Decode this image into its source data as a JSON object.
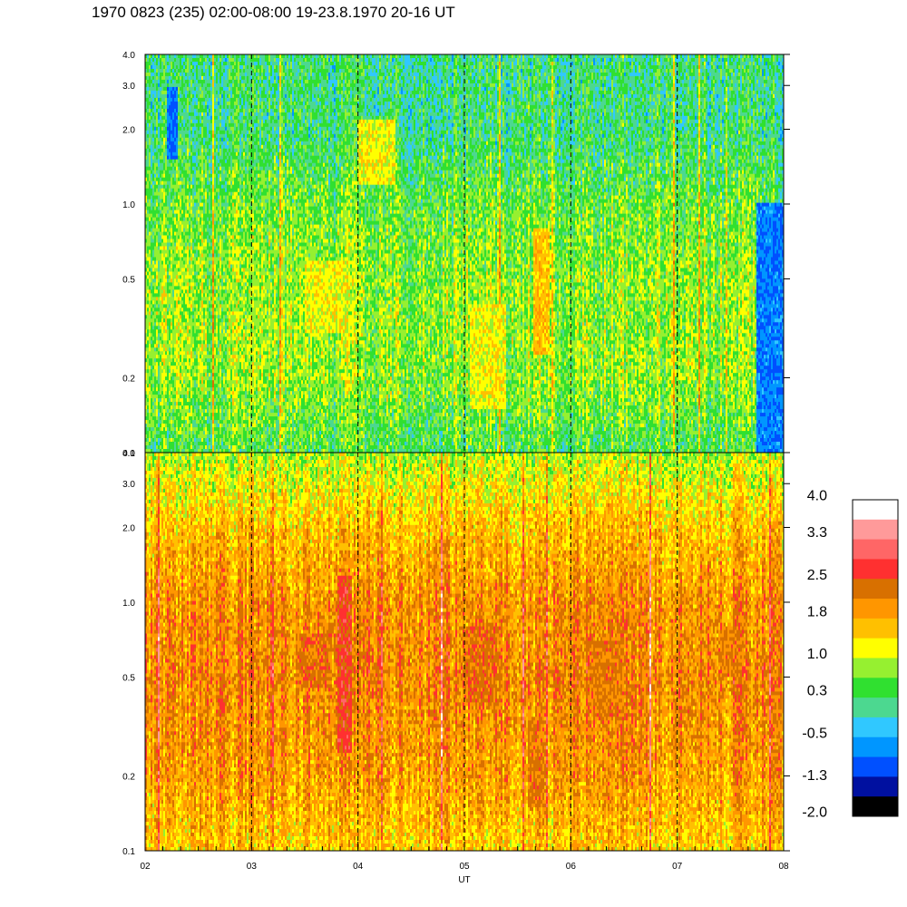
{
  "title": "1970 0823 (235) 02:00-08:00 19-23.8.1970  20-16 UT",
  "colors": {
    "scale": [
      "#000000",
      "#0010a0",
      "#0050ff",
      "#0096ff",
      "#30c8ff",
      "#4cd890",
      "#30e030",
      "#96f030",
      "#ffff00",
      "#ffc000",
      "#ff9600",
      "#d87000",
      "#ff3030",
      "#ff6666",
      "#ff9a9a",
      "#ffffff"
    ],
    "dashed_line": "#000000"
  },
  "chart_data": [
    {
      "type": "heatmap",
      "panel": "upper",
      "xlabel": "",
      "ylabel": "",
      "y_scale": "log",
      "ylim": [
        0.1,
        4.0
      ],
      "y_ticks": [
        0.1,
        0.2,
        0.5,
        1.0,
        2.0,
        3.0,
        4.0
      ],
      "y_tick_labels": [
        "0.1",
        "0.2",
        "0.5",
        "1.0",
        "2.0",
        "3.0",
        "4.0"
      ],
      "xlim": [
        2,
        8
      ],
      "x_ticks": [
        2,
        3,
        4,
        5,
        6,
        7,
        8
      ],
      "dashed_x": [
        3,
        4,
        5,
        6,
        7
      ],
      "grid": false,
      "value_range": [
        -2.0,
        4.0
      ],
      "profile_y": [
        0.1,
        0.2,
        0.5,
        1.0,
        2.0,
        4.0
      ],
      "profile_values": [
        0.4,
        0.8,
        0.8,
        0.6,
        0.2,
        0.2
      ],
      "features": [
        {
          "x_from": 2.2,
          "x_to": 2.3,
          "y_from": 1.5,
          "y_to": 3.0,
          "value": -0.9
        },
        {
          "x_from": 4.0,
          "x_to": 4.35,
          "y_from": 1.2,
          "y_to": 2.2,
          "value": 1.2
        },
        {
          "x_from": 3.5,
          "x_to": 3.9,
          "y_from": 0.3,
          "y_to": 0.6,
          "value": 1.2
        },
        {
          "x_from": 5.05,
          "x_to": 5.4,
          "y_from": 0.15,
          "y_to": 0.4,
          "value": 1.2
        },
        {
          "x_from": 5.65,
          "x_to": 5.8,
          "y_from": 0.25,
          "y_to": 0.8,
          "value": 1.6
        },
        {
          "x_from": 7.75,
          "x_to": 8.0,
          "y_from": 0.1,
          "y_to": 1.0,
          "value": -0.8
        }
      ]
    },
    {
      "type": "heatmap",
      "panel": "lower",
      "xlabel": "UT",
      "ylabel": "",
      "y_scale": "log",
      "ylim": [
        0.1,
        4.0
      ],
      "y_ticks": [
        0.1,
        0.2,
        0.5,
        1.0,
        2.0,
        3.0,
        4.0
      ],
      "y_tick_labels": [
        "0.1",
        "0.2",
        "0.5",
        "1.0",
        "2.0",
        "3.0",
        "4.0"
      ],
      "xlim": [
        2,
        8
      ],
      "x_ticks": [
        2,
        3,
        4,
        5,
        6,
        7,
        8
      ],
      "x_tick_labels": [
        "02",
        "03",
        "04",
        "05",
        "06",
        "07",
        "08"
      ],
      "dashed_x": [
        3,
        4,
        5,
        6,
        7
      ],
      "grid": false,
      "value_range": [
        -2.0,
        4.0
      ],
      "profile_y": [
        0.1,
        0.2,
        0.5,
        1.0,
        2.0,
        3.0,
        4.0
      ],
      "profile_values": [
        1.5,
        1.9,
        2.1,
        2.0,
        1.6,
        1.2,
        0.9
      ],
      "features": [
        {
          "x_from": 3.45,
          "x_to": 3.75,
          "y_from": 0.45,
          "y_to": 0.75,
          "value": 2.3
        },
        {
          "x_from": 3.8,
          "x_to": 3.95,
          "y_from": 0.25,
          "y_to": 1.3,
          "value": 2.6
        },
        {
          "x_from": 5.0,
          "x_to": 5.3,
          "y_from": 0.4,
          "y_to": 0.8,
          "value": 2.3
        },
        {
          "x_from": 5.6,
          "x_to": 5.75,
          "y_from": 0.15,
          "y_to": 0.35,
          "value": 2.2
        },
        {
          "x_from": 6.2,
          "x_to": 6.5,
          "y_from": 0.35,
          "y_to": 0.7,
          "value": 2.2
        },
        {
          "x_from": 7.4,
          "x_to": 7.6,
          "y_from": 0.5,
          "y_to": 0.8,
          "value": 2.2
        }
      ]
    }
  ],
  "colorbar": {
    "labels": [
      "4.0",
      "3.3",
      "2.5",
      "1.8",
      "1.0",
      "0.3",
      "-0.5",
      "-1.3",
      "-2.0"
    ],
    "values": [
      4.0,
      3.3,
      2.5,
      1.8,
      1.0,
      0.3,
      -0.5,
      -1.3,
      -2.0
    ],
    "range": [
      -2.0,
      4.0
    ]
  }
}
